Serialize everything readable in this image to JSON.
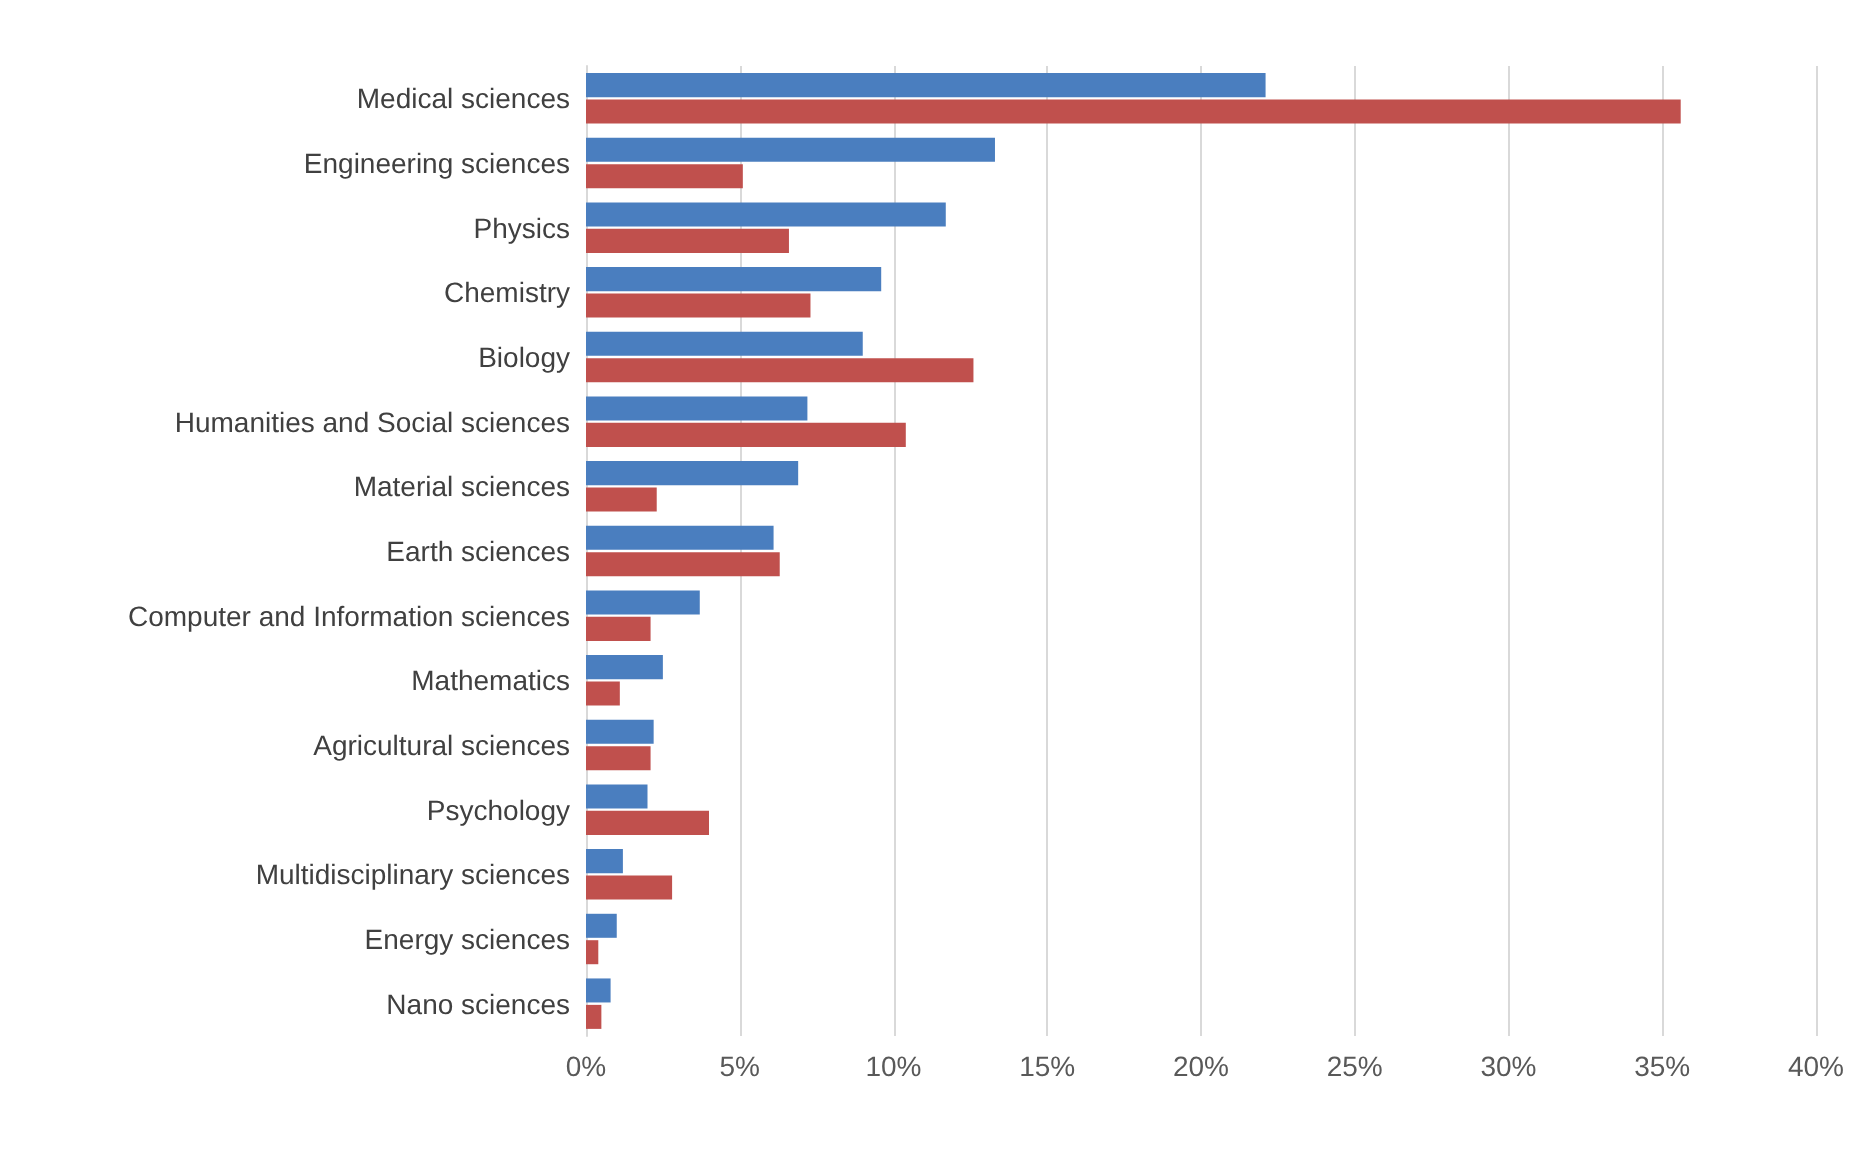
{
  "chart_data": {
    "type": "bar",
    "orientation": "horizontal",
    "categories": [
      "Medical sciences",
      "Engineering sciences",
      "Physics",
      "Chemistry",
      "Biology",
      "Humanities and Social sciences",
      "Material sciences",
      "Earth sciences",
      "Computer and Information sciences",
      "Mathematics",
      "Agricultural sciences",
      "Psychology",
      "Multidisciplinary sciences",
      "Energy sciences",
      "Nano sciences"
    ],
    "series": [
      {
        "color": "#4a7ebf",
        "values": [
          22.1,
          13.3,
          11.7,
          9.6,
          9.0,
          7.2,
          6.9,
          6.1,
          3.7,
          2.5,
          2.2,
          2.0,
          1.2,
          1.0,
          0.8
        ]
      },
      {
        "color": "#c0504d",
        "values": [
          35.6,
          5.1,
          6.6,
          7.3,
          12.6,
          10.4,
          2.3,
          6.3,
          2.1,
          1.1,
          2.1,
          4.0,
          2.8,
          0.4,
          0.5
        ]
      }
    ],
    "xlim": [
      0,
      40
    ],
    "xticks": [
      {
        "value": 0,
        "label": "0%"
      },
      {
        "value": 5,
        "label": "5%"
      },
      {
        "value": 10,
        "label": "10%"
      },
      {
        "value": 15,
        "label": "15%"
      },
      {
        "value": 20,
        "label": "20%"
      },
      {
        "value": 25,
        "label": "25%"
      },
      {
        "value": 30,
        "label": "30%"
      },
      {
        "value": 35,
        "label": "35%"
      },
      {
        "value": 40,
        "label": "40%"
      }
    ],
    "grid": "x"
  }
}
